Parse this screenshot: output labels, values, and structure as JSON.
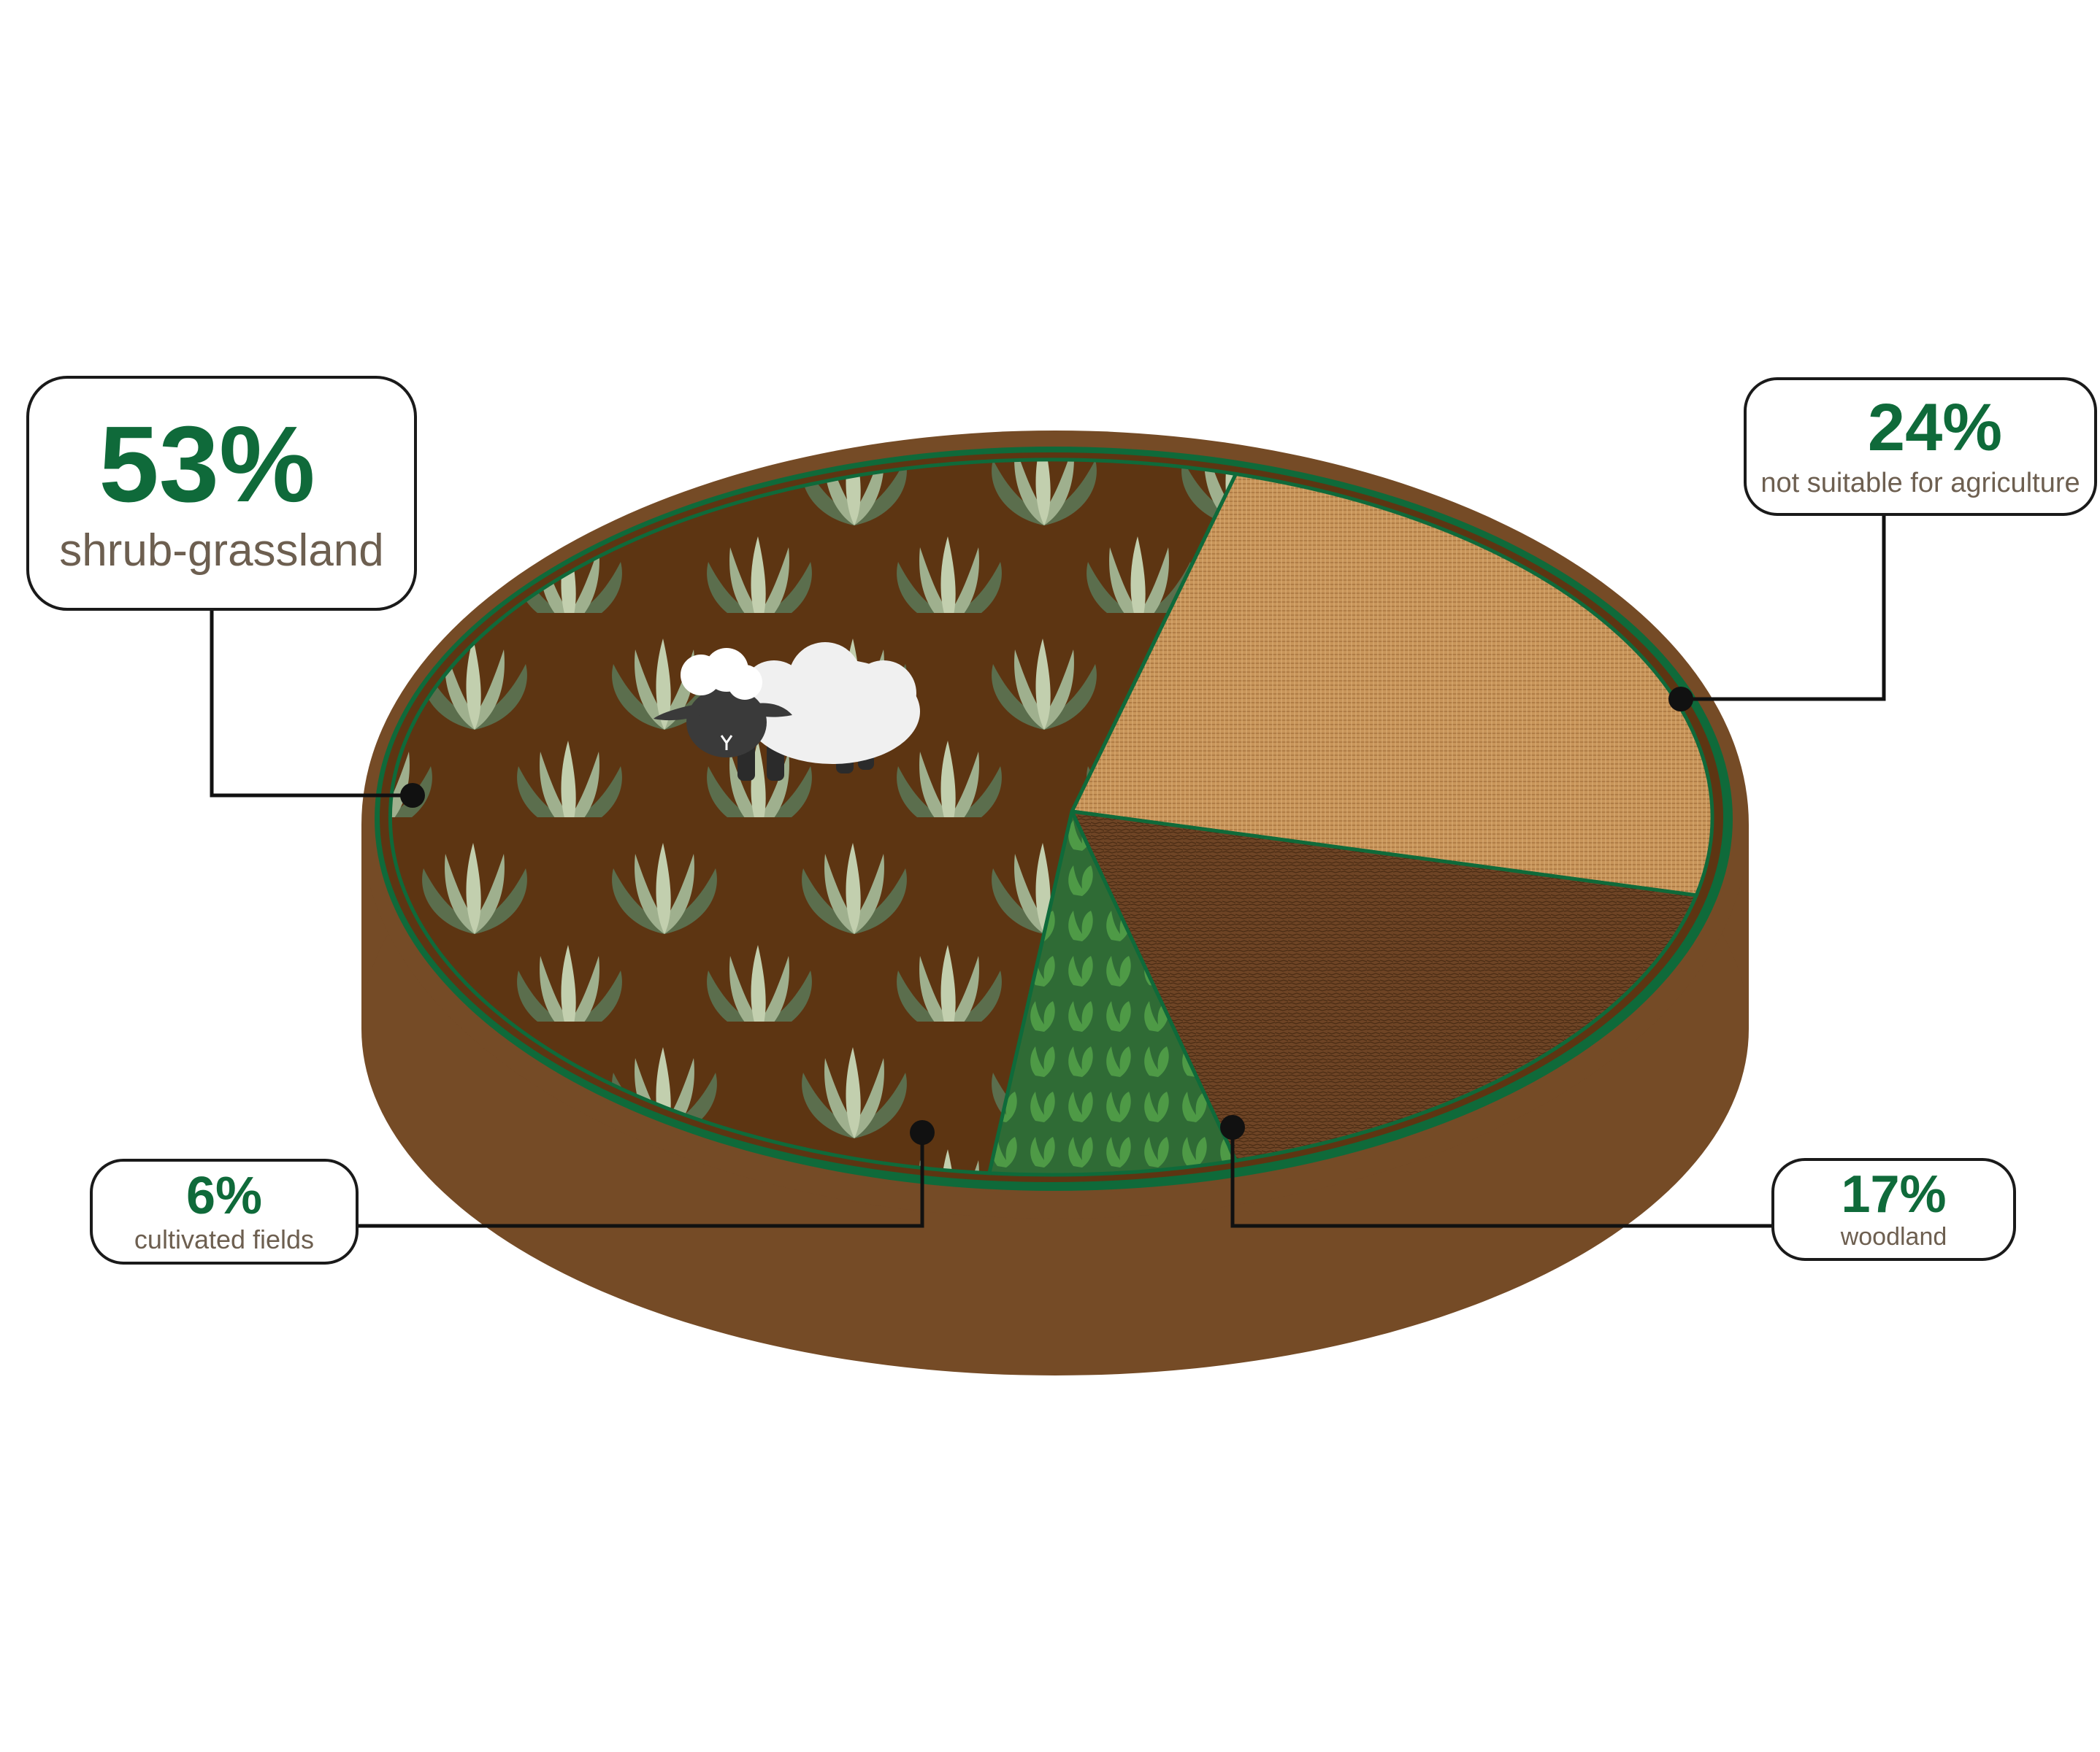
{
  "chart_data": {
    "type": "pie",
    "title": "",
    "slices": [
      {
        "label": "shrub-grassland",
        "percent_label": "53%",
        "value": 53,
        "color": "#5d3512"
      },
      {
        "label": "not suitable for agriculture",
        "percent_label": "24%",
        "value": 24,
        "color": "#c8955a"
      },
      {
        "label": "woodland",
        "percent_label": "17%",
        "value": 17,
        "color": "#6e4425"
      },
      {
        "label": "cultivated fields",
        "percent_label": "6%",
        "value": 6,
        "color": "#2f6b35"
      }
    ]
  },
  "colors": {
    "accent_green": "#0f6a3a",
    "rim_brown": "#754b26",
    "label_text": "#6d5f50"
  },
  "icons": {
    "sheep": "sheep-icon",
    "shrub": "shrub-icon",
    "leaf": "leaf-icon"
  }
}
